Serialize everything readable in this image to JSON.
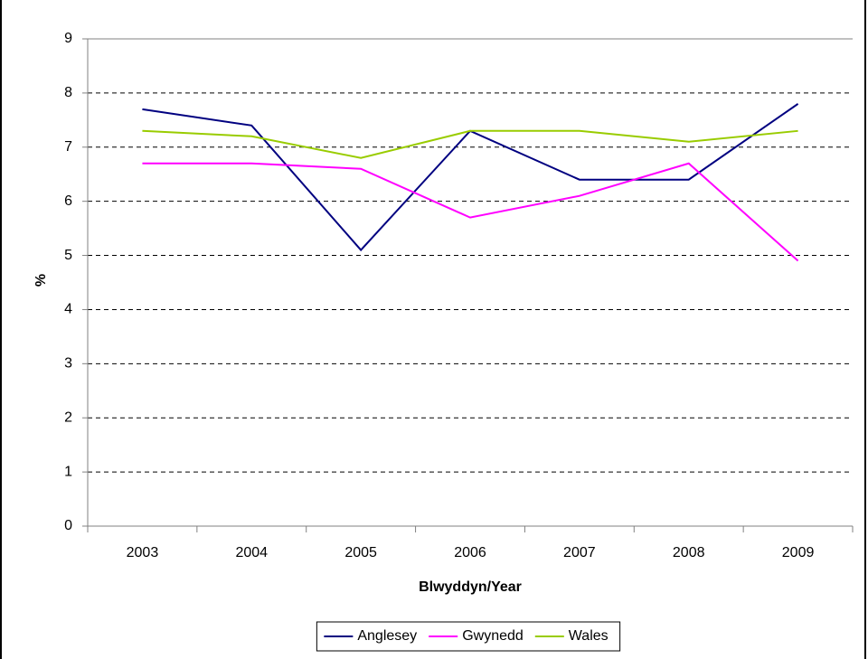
{
  "chart_data": {
    "type": "line",
    "x_label": "Blwyddyn/Year",
    "y_label": "%",
    "categories": [
      "2003",
      "2004",
      "2005",
      "2006",
      "2007",
      "2008",
      "2009"
    ],
    "series": [
      {
        "name": "Anglesey",
        "color": "#000080",
        "values": [
          7.7,
          7.4,
          5.1,
          7.3,
          6.4,
          6.4,
          7.8
        ]
      },
      {
        "name": "Gwynedd",
        "color": "#ff00ff",
        "values": [
          6.7,
          6.7,
          6.6,
          5.7,
          6.1,
          6.7,
          4.9
        ]
      },
      {
        "name": "Wales",
        "color": "#99cc00",
        "values": [
          7.3,
          7.2,
          6.8,
          7.3,
          7.3,
          7.1,
          7.3
        ]
      }
    ],
    "ylim": [
      0,
      9
    ],
    "yticks": [
      0,
      1,
      2,
      3,
      4,
      5,
      6,
      7,
      8,
      9
    ],
    "grid": true,
    "legend": "bottom"
  }
}
